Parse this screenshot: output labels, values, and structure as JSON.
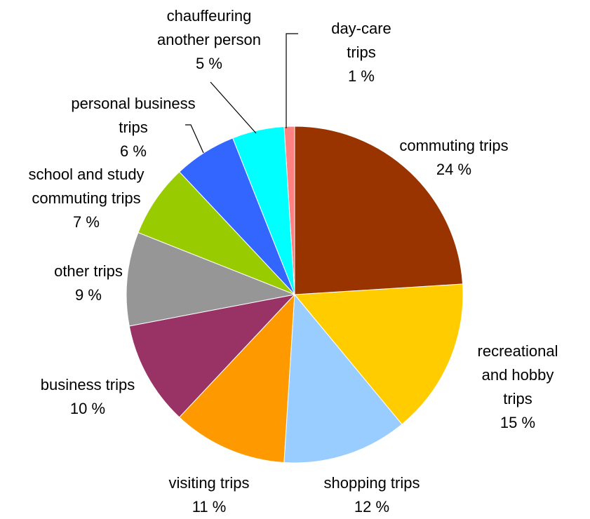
{
  "chart_data": {
    "type": "pie",
    "categories": [
      "commuting trips",
      "recreational\nand hobby trips",
      "shopping trips",
      "visiting trips",
      "business trips",
      "other trips",
      "school and study\ncommuting trips",
      "personal business\ntrips",
      "chauffeuring\nanother person",
      "day-care\ntrips"
    ],
    "values": [
      24,
      15,
      12,
      11,
      10,
      9,
      7,
      6,
      5,
      1
    ],
    "value_labels": [
      "24 %",
      "15 %",
      "12 %",
      "11 %",
      "10 %",
      "9 %",
      "7 %",
      "6 %",
      "5 %",
      "1 %"
    ],
    "colors": [
      "#993300",
      "#ffcc00",
      "#99ccff",
      "#ff9900",
      "#993366",
      "#969696",
      "#99cc00",
      "#3366ff",
      "#00ffff",
      "#ff8080"
    ]
  }
}
